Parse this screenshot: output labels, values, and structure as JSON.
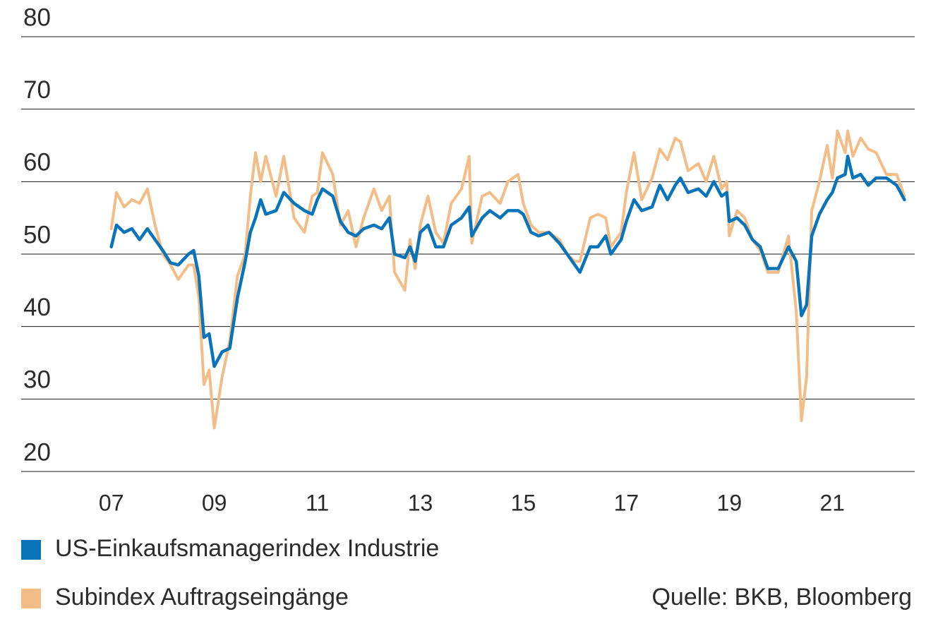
{
  "chart_data": {
    "type": "line",
    "source": "Quelle: BKB, Bloomberg",
    "x": [
      2007.0,
      2007.1,
      2007.25,
      2007.4,
      2007.55,
      2007.7,
      2007.85,
      2008.0,
      2008.15,
      2008.3,
      2008.5,
      2008.6,
      2008.7,
      2008.8,
      2008.9,
      2009.0,
      2009.15,
      2009.3,
      2009.45,
      2009.6,
      2009.7,
      2009.8,
      2009.9,
      2010.0,
      2010.2,
      2010.35,
      2010.55,
      2010.75,
      2010.9,
      2011.0,
      2011.1,
      2011.3,
      2011.45,
      2011.6,
      2011.75,
      2011.9,
      2012.1,
      2012.25,
      2012.4,
      2012.5,
      2012.7,
      2012.8,
      2012.9,
      2013.0,
      2013.15,
      2013.3,
      2013.45,
      2013.6,
      2013.8,
      2013.95,
      2014.0,
      2014.2,
      2014.35,
      2014.55,
      2014.7,
      2014.9,
      2015.0,
      2015.15,
      2015.3,
      2015.5,
      2015.7,
      2015.85,
      2016.0,
      2016.1,
      2016.3,
      2016.45,
      2016.6,
      2016.7,
      2016.9,
      2017.0,
      2017.15,
      2017.3,
      2017.5,
      2017.65,
      2017.8,
      2017.95,
      2018.05,
      2018.2,
      2018.4,
      2018.55,
      2018.7,
      2018.85,
      2018.95,
      2019.0,
      2019.15,
      2019.3,
      2019.45,
      2019.6,
      2019.75,
      2019.95,
      2020.15,
      2020.3,
      2020.4,
      2020.5,
      2020.6,
      2020.75,
      2020.9,
      2021.0,
      2021.1,
      2021.25,
      2021.3,
      2021.4,
      2021.55,
      2021.7,
      2021.85,
      2022.05,
      2022.25,
      2022.4
    ],
    "series": [
      {
        "name": "US-Einkaufsmanagerindex Industrie",
        "color": "#0a74b9",
        "values": [
          51,
          54,
          53,
          53.5,
          52,
          53.5,
          52,
          50.5,
          48.8,
          48.5,
          50,
          50.5,
          47,
          38.5,
          39,
          34.5,
          36.5,
          37,
          44,
          49,
          53,
          55,
          57.5,
          55.5,
          56,
          58.5,
          57,
          56,
          55.5,
          57.5,
          59,
          58,
          54.5,
          53,
          52.5,
          53.5,
          54,
          53.5,
          55,
          50,
          49.5,
          51,
          49,
          53,
          54,
          51,
          51,
          54,
          55,
          56.5,
          52.5,
          55,
          56,
          55,
          56,
          56,
          55.5,
          53,
          52.5,
          53,
          51.5,
          50,
          48.5,
          47.5,
          51,
          51,
          52.5,
          50,
          52,
          54.5,
          57.5,
          56,
          56.5,
          59.5,
          57.5,
          59.5,
          60.5,
          58.5,
          59,
          58,
          60,
          58,
          58.5,
          54.5,
          55,
          54,
          52,
          51,
          48,
          48,
          51,
          49,
          41.5,
          43,
          52.5,
          55.5,
          57.5,
          58.5,
          60.5,
          61,
          63.5,
          60.5,
          61,
          59.5,
          60.5,
          60.5,
          59.5,
          57.5
        ]
      },
      {
        "name": "Subindex Auftragseingänge",
        "color": "#f2bd87",
        "values": [
          53.5,
          58.5,
          56.5,
          57.5,
          57,
          59,
          54,
          50,
          48.5,
          46.5,
          48.5,
          48.5,
          44,
          32,
          34,
          26,
          33,
          38,
          47,
          50,
          58,
          64,
          60,
          63.5,
          58,
          63.5,
          55,
          53,
          58,
          58.5,
          64,
          61,
          54,
          56,
          51,
          55,
          59,
          56,
          58,
          47.5,
          45,
          52,
          48,
          54,
          58,
          53,
          51.5,
          57,
          59,
          63.5,
          51.5,
          58,
          58.5,
          57,
          60,
          61,
          57,
          54,
          53,
          53,
          52,
          50,
          49,
          49,
          55,
          55.5,
          55,
          51,
          53,
          58.5,
          64,
          57.5,
          60.5,
          64.5,
          63,
          66,
          65.5,
          61.5,
          62.5,
          60,
          63.5,
          59,
          60,
          52.5,
          56,
          55,
          52,
          50.5,
          47.5,
          47.5,
          52.5,
          42,
          27,
          33,
          56,
          60,
          65,
          60.5,
          67,
          64,
          67,
          63.5,
          66,
          64.5,
          64,
          61,
          61,
          58
        ]
      }
    ],
    "xlim": [
      2005.25,
      2022.6
    ],
    "xticks": [
      {
        "value": 2007,
        "label": "07"
      },
      {
        "value": 2009,
        "label": "09"
      },
      {
        "value": 2011,
        "label": "11"
      },
      {
        "value": 2013,
        "label": "13"
      },
      {
        "value": 2015,
        "label": "15"
      },
      {
        "value": 2017,
        "label": "17"
      },
      {
        "value": 2019,
        "label": "19"
      },
      {
        "value": 2021,
        "label": "21"
      }
    ],
    "ylim": [
      20,
      80
    ],
    "yticks": [
      20,
      30,
      40,
      50,
      60,
      70,
      80
    ],
    "grid": true,
    "legend": "bottom"
  }
}
